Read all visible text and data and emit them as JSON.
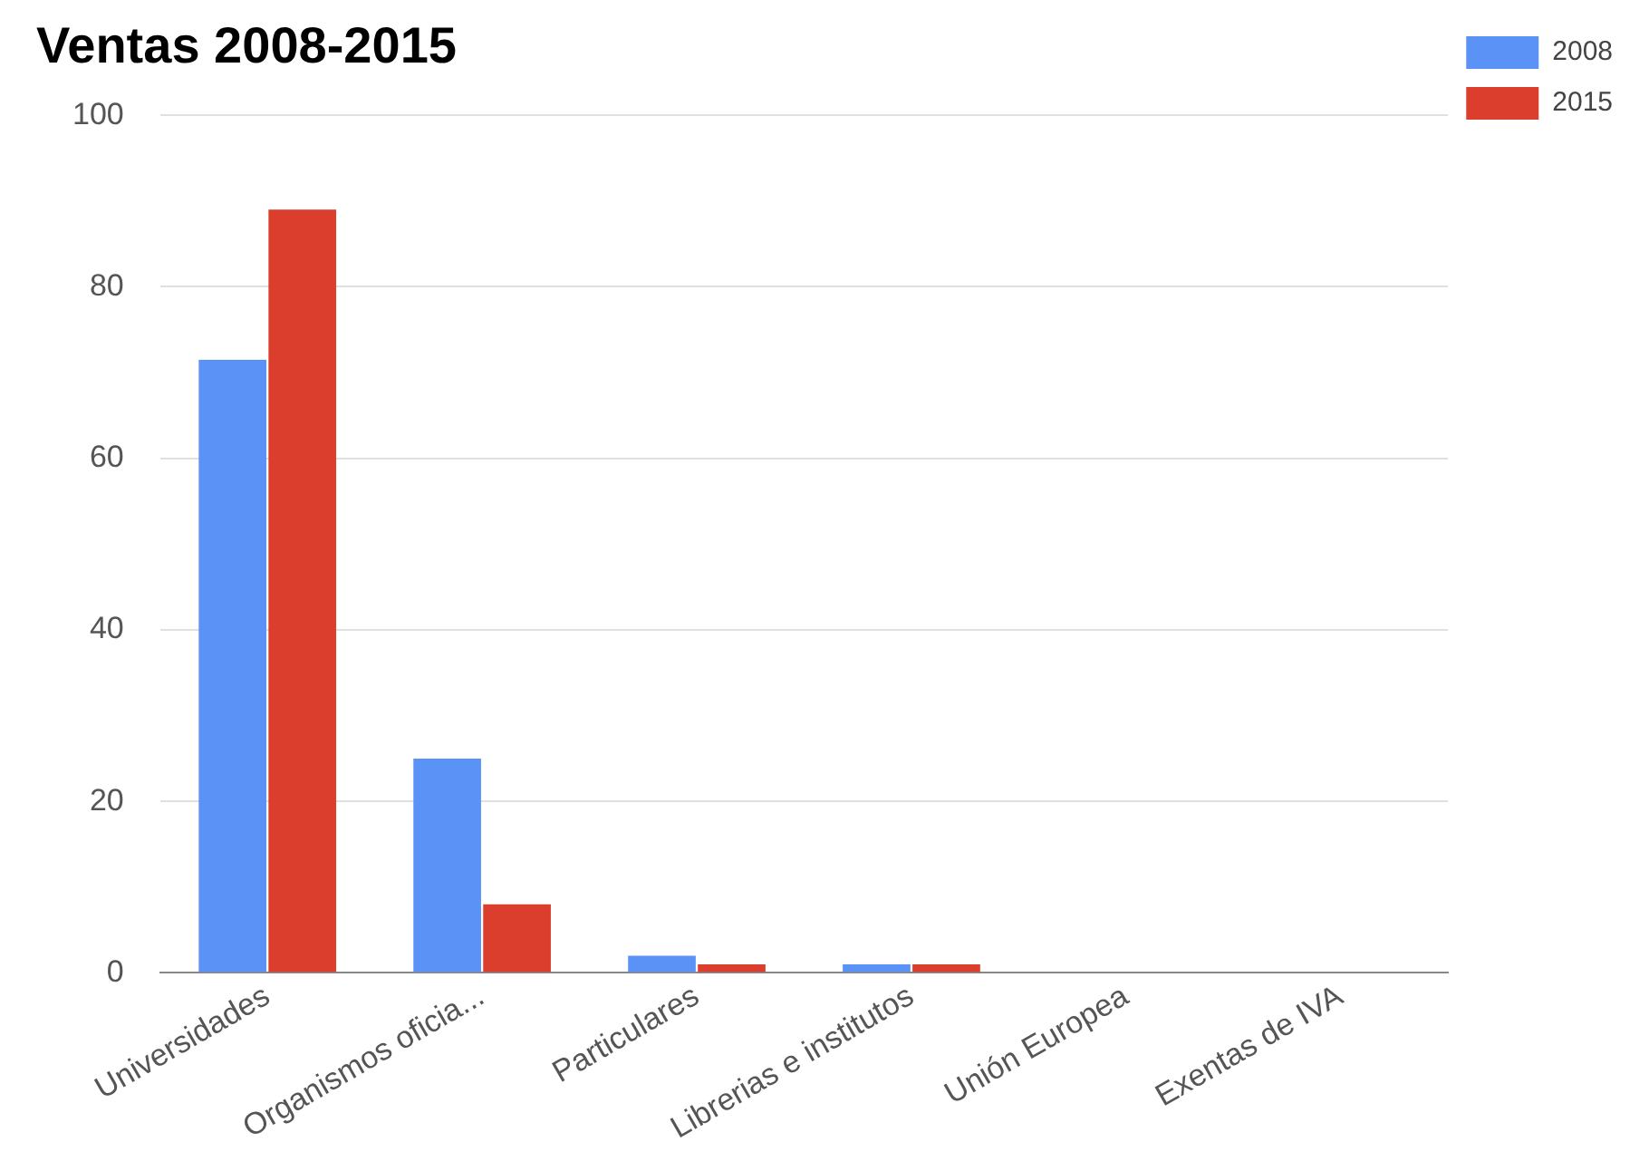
{
  "chart_data": {
    "type": "bar",
    "title": "Ventas 2008-2015",
    "categories": [
      "Universidades",
      "Organismos oficia...",
      "Particulares",
      "Librerias e institutos",
      "Unión Europea",
      "Exentas de IVA"
    ],
    "series": [
      {
        "name": "2008",
        "color": "#5b92f5",
        "values": [
          71.5,
          25,
          2,
          1,
          0,
          null
        ]
      },
      {
        "name": "2015",
        "color": "#dc3e2e",
        "values": [
          89,
          8,
          1,
          1,
          0,
          0
        ]
      }
    ],
    "ylim": [
      0,
      100
    ],
    "yticks": [
      0,
      20,
      40,
      60,
      80,
      100
    ],
    "grid": "y",
    "legend": "top right"
  }
}
